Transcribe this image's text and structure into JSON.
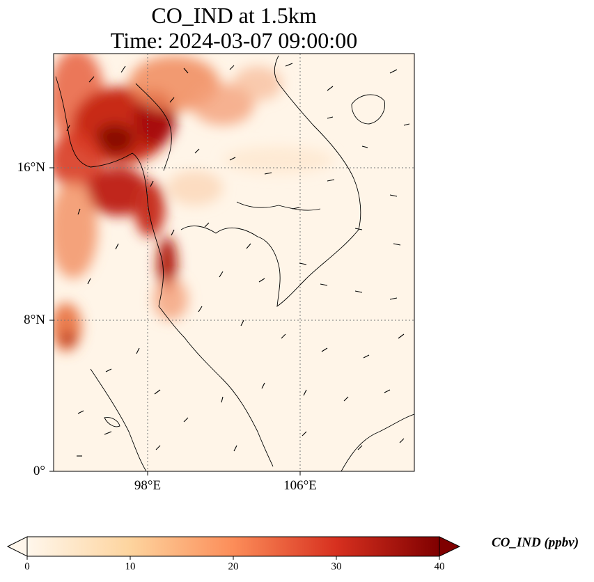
{
  "title": {
    "line1": "CO_IND at 1.5km",
    "line2": "Time: 2024-03-07 09:00:00"
  },
  "map": {
    "lat_ticks": [
      "16°N",
      "8°N",
      "0°"
    ],
    "lon_ticks": [
      "98°E",
      "106°E"
    ],
    "extent": {
      "lon_min": 93,
      "lon_max": 112,
      "lat_min": 0,
      "lat_max": 22
    },
    "gridlines": true,
    "colormap": "OrRd",
    "wind_vectors": true
  },
  "colorbar": {
    "label": "CO_IND (ppbv)",
    "ticks": [
      "0",
      "10",
      "20",
      "30",
      "40"
    ],
    "min": 0,
    "max": 40,
    "extend": "both",
    "colors": [
      "#fff7ec",
      "#fdd49e",
      "#fc8d59",
      "#d7301f",
      "#7f0000"
    ]
  }
}
